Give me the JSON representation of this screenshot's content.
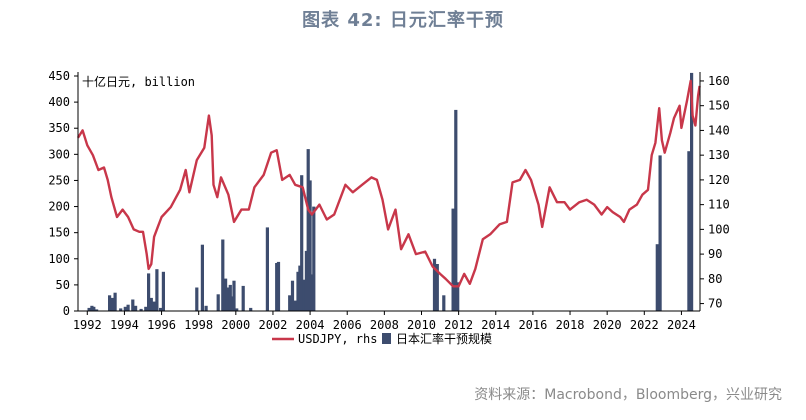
{
  "header": {
    "title": "图表 42: 日元汇率干预"
  },
  "footer": {
    "source": "资料来源：Macrobond，Bloomberg，兴业研究"
  },
  "chart_data": {
    "type": "bar+line",
    "left_axis_label": "十亿日元, billion",
    "left_ylim": [
      0,
      450
    ],
    "left_ticks": [
      0,
      50,
      100,
      150,
      200,
      250,
      300,
      350,
      400,
      450
    ],
    "right_ylim": [
      67,
      162
    ],
    "right_ticks": [
      70,
      80,
      90,
      100,
      110,
      120,
      130,
      140,
      150,
      160
    ],
    "xlim": [
      1991.5,
      2025.0
    ],
    "x_ticks": [
      1992,
      1994,
      1996,
      1998,
      2000,
      2002,
      2004,
      2006,
      2008,
      2010,
      2012,
      2014,
      2016,
      2018,
      2020,
      2022,
      2024
    ],
    "legend": {
      "line_label": "USDJPY, rhs",
      "bar_label": "日本汇率干预规模",
      "position": "bottom-center"
    },
    "colors": {
      "line": "#c8374a",
      "bars": "#3d4c6e",
      "title": "#6f7f95"
    },
    "series_line": {
      "name": "USDJPY, rhs",
      "axis": "right",
      "points": [
        [
          1991.5,
          137
        ],
        [
          1991.75,
          140
        ],
        [
          1992.0,
          134
        ],
        [
          1992.3,
          130
        ],
        [
          1992.6,
          124
        ],
        [
          1992.9,
          125
        ],
        [
          1993.1,
          120
        ],
        [
          1993.3,
          113
        ],
        [
          1993.6,
          105
        ],
        [
          1993.9,
          108
        ],
        [
          1994.2,
          105
        ],
        [
          1994.5,
          100
        ],
        [
          1994.8,
          99
        ],
        [
          1995.0,
          99
        ],
        [
          1995.2,
          90
        ],
        [
          1995.3,
          84
        ],
        [
          1995.45,
          86
        ],
        [
          1995.6,
          97
        ],
        [
          1995.8,
          101
        ],
        [
          1996.0,
          105
        ],
        [
          1996.5,
          109
        ],
        [
          1997.0,
          116
        ],
        [
          1997.3,
          124
        ],
        [
          1997.5,
          115
        ],
        [
          1997.9,
          128
        ],
        [
          1998.3,
          133
        ],
        [
          1998.55,
          146
        ],
        [
          1998.7,
          138
        ],
        [
          1998.8,
          118
        ],
        [
          1999.0,
          113
        ],
        [
          1999.2,
          121
        ],
        [
          1999.6,
          114
        ],
        [
          1999.9,
          103
        ],
        [
          2000.3,
          108
        ],
        [
          2000.7,
          108
        ],
        [
          2001.0,
          117
        ],
        [
          2001.5,
          122
        ],
        [
          2001.9,
          131
        ],
        [
          2002.2,
          132
        ],
        [
          2002.5,
          120
        ],
        [
          2002.9,
          122
        ],
        [
          2003.2,
          118
        ],
        [
          2003.6,
          117
        ],
        [
          2003.9,
          108
        ],
        [
          2004.1,
          106
        ],
        [
          2004.5,
          110
        ],
        [
          2004.9,
          104
        ],
        [
          2005.3,
          106
        ],
        [
          2005.9,
          118
        ],
        [
          2006.3,
          115
        ],
        [
          2006.8,
          118
        ],
        [
          2007.3,
          121
        ],
        [
          2007.6,
          120
        ],
        [
          2007.9,
          112
        ],
        [
          2008.2,
          100
        ],
        [
          2008.6,
          108
        ],
        [
          2008.9,
          92
        ],
        [
          2009.3,
          98
        ],
        [
          2009.7,
          90
        ],
        [
          2010.2,
          91
        ],
        [
          2010.6,
          85
        ],
        [
          2011.0,
          82
        ],
        [
          2011.3,
          80
        ],
        [
          2011.7,
          77
        ],
        [
          2012.0,
          77
        ],
        [
          2012.3,
          82
        ],
        [
          2012.6,
          78
        ],
        [
          2012.9,
          84
        ],
        [
          2013.3,
          96
        ],
        [
          2013.7,
          98
        ],
        [
          2014.2,
          102
        ],
        [
          2014.6,
          103
        ],
        [
          2014.9,
          119
        ],
        [
          2015.3,
          120
        ],
        [
          2015.6,
          124
        ],
        [
          2015.9,
          120
        ],
        [
          2016.3,
          110
        ],
        [
          2016.5,
          101
        ],
        [
          2016.9,
          117
        ],
        [
          2017.3,
          111
        ],
        [
          2017.7,
          111
        ],
        [
          2018.0,
          108
        ],
        [
          2018.5,
          111
        ],
        [
          2018.9,
          112
        ],
        [
          2019.3,
          110
        ],
        [
          2019.7,
          106
        ],
        [
          2020.0,
          109
        ],
        [
          2020.3,
          107
        ],
        [
          2020.7,
          105
        ],
        [
          2020.9,
          103
        ],
        [
          2021.2,
          108
        ],
        [
          2021.6,
          110
        ],
        [
          2021.9,
          114
        ],
        [
          2022.2,
          116
        ],
        [
          2022.4,
          130
        ],
        [
          2022.6,
          135
        ],
        [
          2022.8,
          149
        ],
        [
          2022.95,
          136
        ],
        [
          2023.1,
          131
        ],
        [
          2023.4,
          139
        ],
        [
          2023.6,
          145
        ],
        [
          2023.9,
          150
        ],
        [
          2024.0,
          141
        ],
        [
          2024.3,
          152
        ],
        [
          2024.5,
          160
        ],
        [
          2024.6,
          146
        ],
        [
          2024.75,
          142
        ],
        [
          2024.9,
          154
        ],
        [
          2024.98,
          158
        ]
      ]
    },
    "series_bars": {
      "name": "日本汇率干预规模",
      "axis": "left",
      "bars": [
        [
          1992.1,
          6
        ],
        [
          1992.25,
          10
        ],
        [
          1992.35,
          8
        ],
        [
          1992.5,
          3
        ],
        [
          1993.2,
          30
        ],
        [
          1993.35,
          25
        ],
        [
          1993.5,
          35
        ],
        [
          1993.8,
          5
        ],
        [
          1994.05,
          8
        ],
        [
          1994.2,
          12
        ],
        [
          1994.45,
          22
        ],
        [
          1994.6,
          10
        ],
        [
          1994.9,
          4
        ],
        [
          1995.15,
          8
        ],
        [
          1995.3,
          72
        ],
        [
          1995.45,
          25
        ],
        [
          1995.6,
          18
        ],
        [
          1995.75,
          80
        ],
        [
          1995.95,
          6
        ],
        [
          1996.1,
          75
        ],
        [
          1997.9,
          45
        ],
        [
          1998.2,
          127
        ],
        [
          1998.4,
          10
        ],
        [
          1999.05,
          32
        ],
        [
          1999.3,
          137
        ],
        [
          1999.45,
          62
        ],
        [
          1999.55,
          45
        ],
        [
          1999.7,
          50
        ],
        [
          1999.8,
          28
        ],
        [
          1999.9,
          58
        ],
        [
          2000.05,
          5
        ],
        [
          2000.4,
          48
        ],
        [
          2000.8,
          6
        ],
        [
          2001.7,
          160
        ],
        [
          2002.2,
          92
        ],
        [
          2002.3,
          94
        ],
        [
          2002.9,
          30
        ],
        [
          2003.05,
          58
        ],
        [
          2003.2,
          20
        ],
        [
          2003.35,
          75
        ],
        [
          2003.45,
          87
        ],
        [
          2003.55,
          260
        ],
        [
          2003.7,
          60
        ],
        [
          2003.8,
          115
        ],
        [
          2003.9,
          310
        ],
        [
          2004.0,
          250
        ],
        [
          2004.1,
          70
        ],
        [
          2004.2,
          200
        ],
        [
          2010.7,
          100
        ],
        [
          2010.85,
          90
        ],
        [
          2011.2,
          30
        ],
        [
          2011.7,
          196
        ],
        [
          2011.85,
          385
        ],
        [
          2011.95,
          55
        ],
        [
          2022.7,
          128
        ],
        [
          2022.85,
          298
        ],
        [
          2024.4,
          306
        ],
        [
          2024.55,
          456
        ]
      ]
    }
  }
}
